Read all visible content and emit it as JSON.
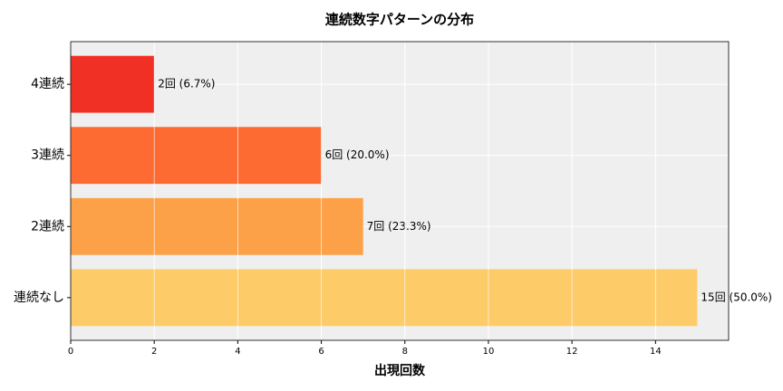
{
  "chart_data": {
    "type": "barh",
    "title": "連続数字パターンの分布",
    "xlabel": "出現回数",
    "categories": [
      "4連続",
      "3連続",
      "2連続",
      "連続なし"
    ],
    "values": [
      2,
      6,
      7,
      15
    ],
    "value_labels": [
      "2回 (6.7%)",
      "6回 (20.0%)",
      "7回 (23.3%)",
      "15回 (50.0%)"
    ],
    "colors": [
      "#f03024",
      "#fd6b33",
      "#fda148",
      "#fecb69"
    ],
    "xlim": [
      0,
      15.75
    ],
    "xticks": [
      0,
      2,
      4,
      6,
      8,
      10,
      12,
      14
    ],
    "grid": true
  }
}
